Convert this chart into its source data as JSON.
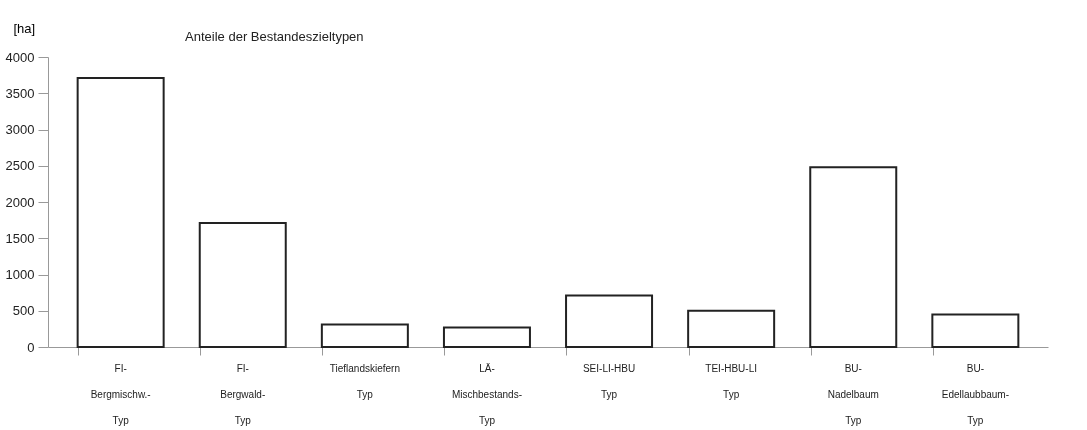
{
  "chart_data": {
    "type": "bar",
    "title": "Anteile der Bestandeszieltypen",
    "ylabel": "[ha]",
    "categories": [
      "FI-\nBergmischw.-\nTyp",
      "FI-\nBergwald-\nTyp",
      "Tieflandskiefern\n\nTyp",
      "LÄ-\nMischbestands-\nTyp",
      "SEI-LI-HBU\n\nTyp",
      "TEI-HBU-LI\n\nTyp",
      "BU-\nNadelbaum\nTyp",
      "BU-\nEdellaubbaum-\nTyp"
    ],
    "values": [
      3710,
      1710,
      310,
      270,
      710,
      500,
      2480,
      450
    ],
    "color": "#ffffff",
    "ylim": [
      0,
      4000
    ],
    "yticks": [
      0,
      500,
      1000,
      1500,
      2000,
      2500,
      3000,
      3500,
      4000
    ],
    "grid": false
  }
}
